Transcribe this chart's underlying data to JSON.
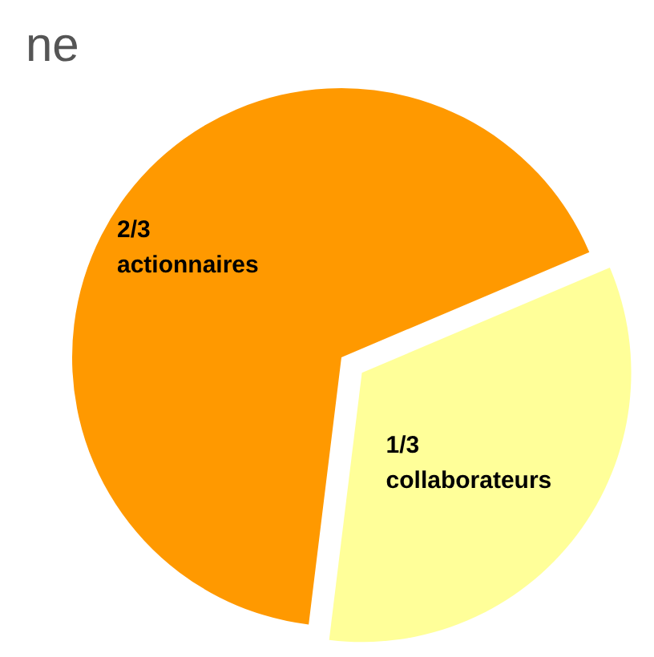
{
  "chart_data": {
    "type": "pie",
    "title": "ne",
    "categories": [
      "actionnaires",
      "collaborateurs"
    ],
    "values": [
      0.6667,
      0.3333
    ],
    "value_labels": [
      "2/3",
      "1/3"
    ],
    "colors": [
      "#ff9900",
      "#ffff99"
    ]
  }
}
